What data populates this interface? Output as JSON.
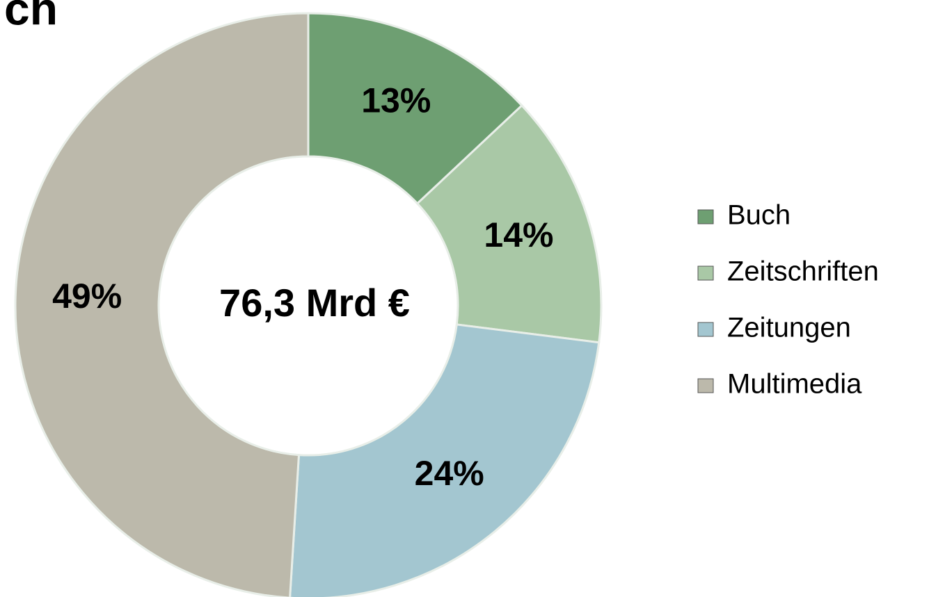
{
  "chart_data": {
    "type": "donut",
    "title": "ch",
    "center_label": "76,3 Mrd €",
    "categories": [
      "Buch",
      "Zeitschriften",
      "Zeitungen",
      "Multimedia"
    ],
    "values": [
      13,
      14,
      24,
      49
    ],
    "value_labels": [
      "13%",
      "14%",
      "24%",
      "49%"
    ],
    "colors": [
      "#6e9f72",
      "#a9c8a6",
      "#a3c6d0",
      "#bcb9ab"
    ],
    "legend": "right"
  }
}
